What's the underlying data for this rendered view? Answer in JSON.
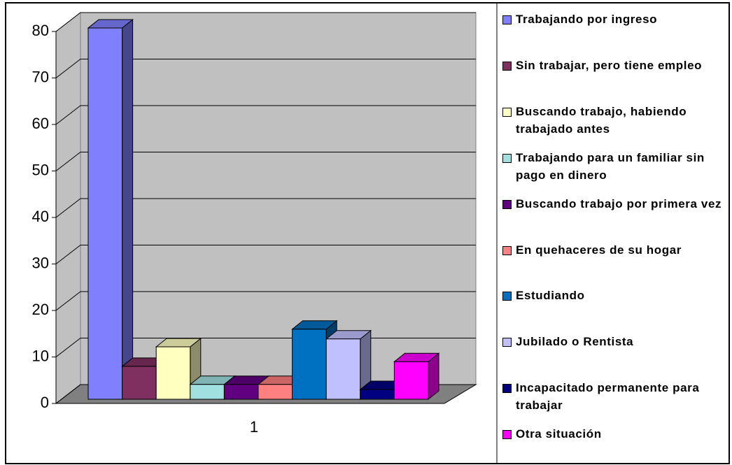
{
  "chart_data": {
    "type": "bar3d",
    "categories": [
      "1"
    ],
    "ylim": [
      0,
      80
    ],
    "yticks": [
      0,
      10,
      20,
      30,
      40,
      50,
      60,
      70,
      80
    ],
    "grid": true,
    "legend": "right",
    "series": [
      {
        "name": "Trabajando por ingreso",
        "color": "#8080ff",
        "values": [
          80
        ]
      },
      {
        "name": "Sin trabajar, pero tiene empleo",
        "color": "#803060",
        "values": [
          7.1
        ]
      },
      {
        "name": "Buscando trabajo, habiendo trabajado antes",
        "color": "#ffffc0",
        "values": [
          11.3
        ]
      },
      {
        "name": "Trabajando para un familiar sin pago en dinero",
        "color": "#a0e0e0",
        "values": [
          3.2
        ]
      },
      {
        "name": "Buscando trabajo por primera vez",
        "color": "#600080",
        "values": [
          3.2
        ]
      },
      {
        "name": "En quehaceres de su hogar",
        "color": "#ff8080",
        "values": [
          3.2
        ]
      },
      {
        "name": "Estudiando",
        "color": "#0070c0",
        "values": [
          15.1
        ]
      },
      {
        "name": "Jubilado o Rentista",
        "color": "#c0c0ff",
        "values": [
          13
        ]
      },
      {
        "name": "Incapacitado permanente para trabajar",
        "color": "#000080",
        "values": [
          2.1
        ]
      },
      {
        "name": "Otra situación",
        "color": "#ff00ff",
        "values": [
          8.1
        ]
      }
    ]
  }
}
